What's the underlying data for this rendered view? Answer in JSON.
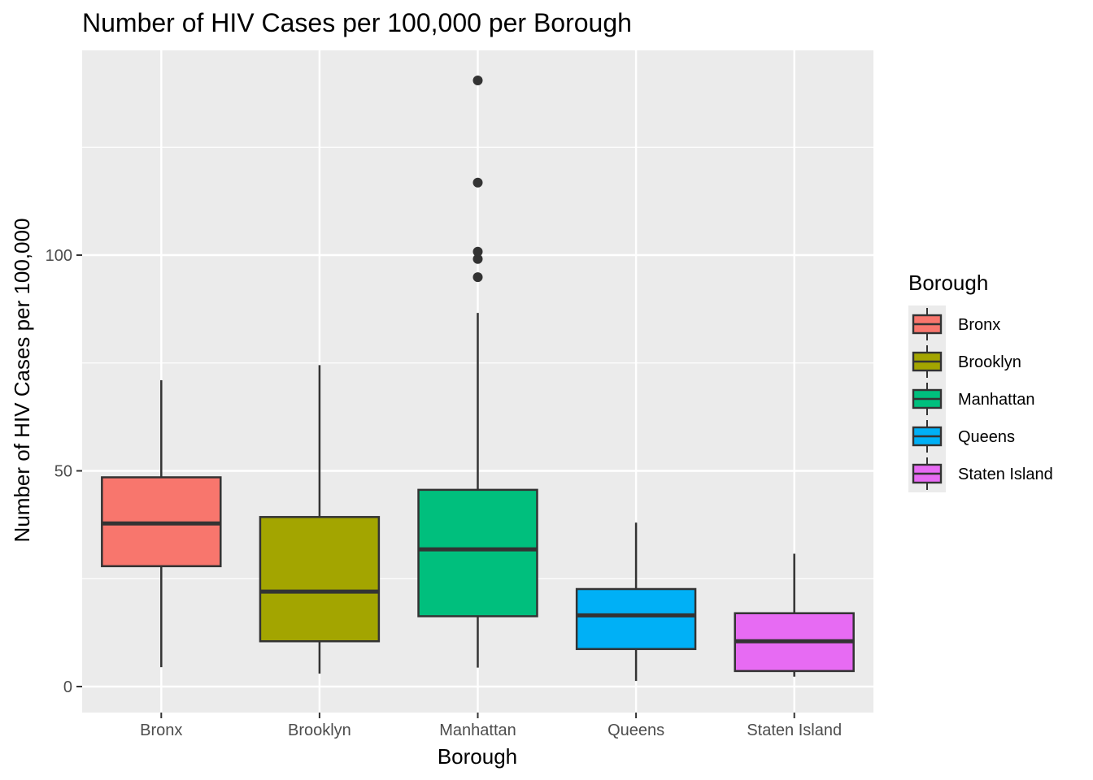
{
  "chart_data": {
    "type": "boxplot",
    "title": "Number of HIV Cases per 100,000 per Borough",
    "xlabel": "Borough",
    "ylabel": "Number of HIV Cases per 100,000",
    "ylim": [
      -6,
      147
    ],
    "yticks": [
      0,
      50,
      100
    ],
    "ytick_labels": [
      "0",
      "50",
      "100"
    ],
    "grid": true,
    "legend": {
      "title": "Borough",
      "position": "right"
    },
    "categories": [
      "Bronx",
      "Brooklyn",
      "Manhattan",
      "Queens",
      "Staten Island"
    ],
    "series": [
      {
        "name": "Bronx",
        "color": "#F8766D",
        "min": 4.5,
        "q1": 27.9,
        "median": 37.8,
        "q3": 48.5,
        "max": 71.0,
        "outliers": []
      },
      {
        "name": "Brooklyn",
        "color": "#A3A500",
        "min": 3.0,
        "q1": 10.5,
        "median": 22.0,
        "q3": 39.3,
        "max": 74.5,
        "outliers": []
      },
      {
        "name": "Manhattan",
        "color": "#00BF7D",
        "min": 4.4,
        "q1": 16.3,
        "median": 31.8,
        "q3": 45.6,
        "max": 86.6,
        "outliers": [
          94.9,
          99.1,
          100.8,
          116.8,
          140.5
        ]
      },
      {
        "name": "Queens",
        "color": "#00B0F6",
        "min": 1.3,
        "q1": 8.7,
        "median": 16.5,
        "q3": 22.6,
        "max": 38.0,
        "outliers": []
      },
      {
        "name": "Staten Island",
        "color": "#E76BF3",
        "min": 2.3,
        "q1": 3.6,
        "median": 10.5,
        "q3": 17.0,
        "max": 30.8,
        "outliers": []
      }
    ],
    "colors": {
      "panel_background": "#EBEBEB",
      "grid_major": "#FFFFFF",
      "box_outline": "#333333",
      "outlier_point": "#333333"
    }
  }
}
